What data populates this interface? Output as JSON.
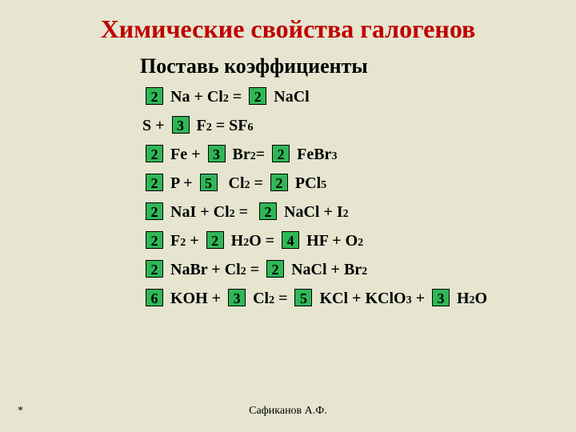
{
  "colors": {
    "background": "#e5e5d0",
    "title": "#c00000",
    "subtitle": "#000000",
    "equation_text": "#000000",
    "coef_bg": "#2fb757",
    "coef_fg": "#000000",
    "coef_border": "#000000",
    "footer_text": "#000000"
  },
  "title": "Химические свойства галогенов",
  "subtitle": "Поставь коэффициенты",
  "equations": [
    [
      {
        "type": "coef",
        "value": "2"
      },
      {
        "type": "text",
        "value": " Na + Cl"
      },
      {
        "type": "sub",
        "value": "2"
      },
      {
        "type": "text",
        "value": " = "
      },
      {
        "type": "coef",
        "value": "2"
      },
      {
        "type": "text",
        "value": " NaCl"
      }
    ],
    [
      {
        "type": "text",
        "value": "S + "
      },
      {
        "type": "coef",
        "value": "3"
      },
      {
        "type": "text",
        "value": " F"
      },
      {
        "type": "sub",
        "value": "2"
      },
      {
        "type": "text",
        "value": " = SF"
      },
      {
        "type": "sub",
        "value": "6"
      }
    ],
    [
      {
        "type": "coef",
        "value": "2"
      },
      {
        "type": "text",
        "value": " Fe + "
      },
      {
        "type": "coef",
        "value": "3"
      },
      {
        "type": "text",
        "value": " Br"
      },
      {
        "type": "sub",
        "value": "2"
      },
      {
        "type": "text",
        "value": "= "
      },
      {
        "type": "coef",
        "value": "2"
      },
      {
        "type": "text",
        "value": " FeBr"
      },
      {
        "type": "sub",
        "value": "3"
      }
    ],
    [
      {
        "type": "coef",
        "value": "2"
      },
      {
        "type": "text",
        "value": " P + "
      },
      {
        "type": "coef",
        "value": "5"
      },
      {
        "type": "text",
        "value": "  Cl"
      },
      {
        "type": "sub",
        "value": "2"
      },
      {
        "type": "text",
        "value": " = "
      },
      {
        "type": "coef",
        "value": "2"
      },
      {
        "type": "text",
        "value": " PCl"
      },
      {
        "type": "sub",
        "value": "5"
      }
    ],
    [
      {
        "type": "coef",
        "value": "2"
      },
      {
        "type": "text",
        "value": " NaI + Cl"
      },
      {
        "type": "sub",
        "value": "2"
      },
      {
        "type": "text",
        "value": " =  "
      },
      {
        "type": "coef",
        "value": "2"
      },
      {
        "type": "text",
        "value": " NaCl + I"
      },
      {
        "type": "sub",
        "value": "2"
      }
    ],
    [
      {
        "type": "coef",
        "value": "2"
      },
      {
        "type": "text",
        "value": " F"
      },
      {
        "type": "sub",
        "value": "2"
      },
      {
        "type": "text",
        "value": " + "
      },
      {
        "type": "coef",
        "value": "2"
      },
      {
        "type": "text",
        "value": " H"
      },
      {
        "type": "sub",
        "value": "2"
      },
      {
        "type": "text",
        "value": "O = "
      },
      {
        "type": "coef",
        "value": "4"
      },
      {
        "type": "text",
        "value": " HF + O"
      },
      {
        "type": "sub",
        "value": "2"
      }
    ],
    [
      {
        "type": "coef",
        "value": "2"
      },
      {
        "type": "text",
        "value": " NaBr + Cl"
      },
      {
        "type": "sub",
        "value": "2"
      },
      {
        "type": "text",
        "value": " = "
      },
      {
        "type": "coef",
        "value": "2"
      },
      {
        "type": "text",
        "value": " NaCl + Br"
      },
      {
        "type": "sub",
        "value": "2"
      }
    ],
    [
      {
        "type": "coef",
        "value": "6"
      },
      {
        "type": "text",
        "value": " KOH + "
      },
      {
        "type": "coef",
        "value": "3"
      },
      {
        "type": "text",
        "value": " Cl"
      },
      {
        "type": "sub",
        "value": "2"
      },
      {
        "type": "text",
        "value": " = "
      },
      {
        "type": "coef",
        "value": "5"
      },
      {
        "type": "text",
        "value": " KCl + KClO"
      },
      {
        "type": "sub",
        "value": "3"
      },
      {
        "type": "text",
        "value": " + "
      },
      {
        "type": "coef",
        "value": "3"
      },
      {
        "type": "text",
        "value": " H"
      },
      {
        "type": "sub",
        "value": "2"
      },
      {
        "type": "text",
        "value": "O"
      }
    ]
  ],
  "footer_left": "*",
  "footer_center": "Сафиканов А.Ф."
}
